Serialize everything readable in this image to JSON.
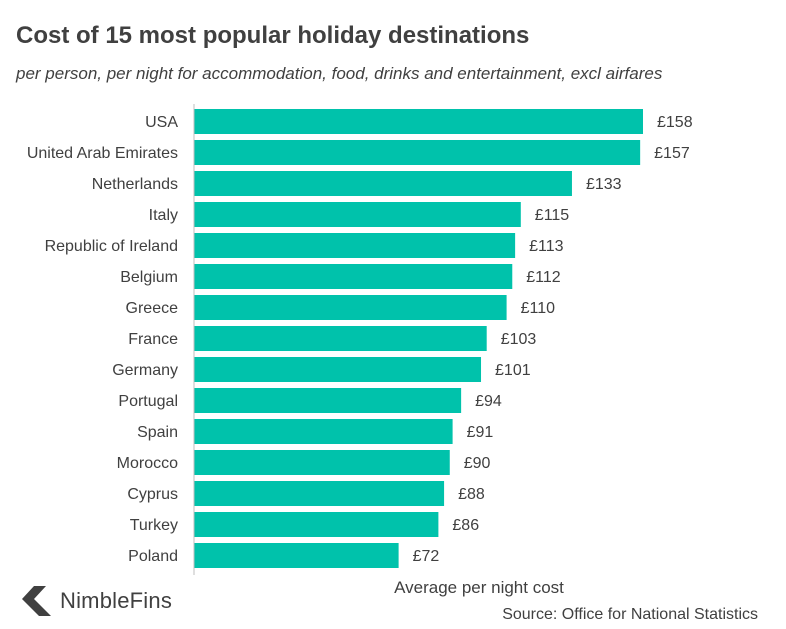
{
  "chart_data": {
    "type": "bar",
    "orientation": "horizontal",
    "title": "Cost of 15 most popular holiday destinations",
    "subtitle": "per person, per night for accommodation, food, drinks and entertainment, excl airfares",
    "xlabel": "Average per night cost",
    "ylabel": "",
    "xlim": [
      0,
      165
    ],
    "grid": false,
    "legend": "none",
    "value_prefix": "£",
    "categories": [
      "USA",
      "United Arab Emirates",
      "Netherlands",
      "Italy",
      "Republic of Ireland",
      "Belgium",
      "Greece",
      "France",
      "Germany",
      "Portugal",
      "Spain",
      "Morocco",
      "Cyprus",
      "Turkey",
      "Poland"
    ],
    "values": [
      158,
      157,
      133,
      115,
      113,
      112,
      110,
      103,
      101,
      94,
      91,
      90,
      88,
      86,
      72
    ],
    "data_labels": [
      "£158",
      "£157",
      "£133",
      "£115",
      "£113",
      "£112",
      "£110",
      "£103",
      "£101",
      "£94",
      "£91",
      "£90",
      "£88",
      "£86",
      "£72"
    ]
  },
  "source": "Source: Office for National Statistics",
  "logo": {
    "text": "NimbleFins",
    "icon": "arrow-chevron-icon"
  },
  "colors": {
    "bar": "#00C2AB",
    "text": "#404040",
    "axis": "#bfbfbf",
    "logo_icon": "#404040"
  }
}
